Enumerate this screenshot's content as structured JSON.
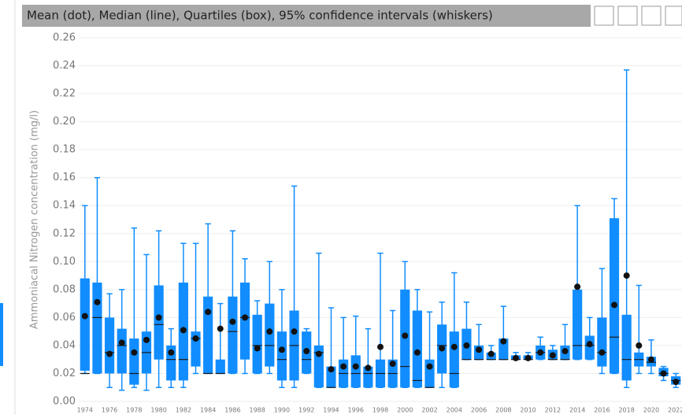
{
  "chart_data": {
    "type": "box",
    "title": "Mean (dot), Median (line), Quartiles (box), 95% confidence intervals (whiskers)",
    "y_label": "Ammoniacal Nitrogen concentration (mg/l)",
    "categories": [
      "1974",
      null,
      "1976",
      null,
      "1978",
      null,
      "1980",
      null,
      "1982",
      null,
      "1984",
      null,
      "1986",
      null,
      "1988",
      null,
      "1990",
      null,
      "1992",
      null,
      "1994",
      null,
      "1996",
      null,
      "1998",
      null,
      "2000",
      null,
      "2002",
      null,
      "2004",
      null,
      "2006",
      null,
      "2008",
      null,
      "2010",
      null,
      "2012",
      null,
      "2014",
      null,
      "2016",
      null,
      "2018",
      null,
      "2020",
      null,
      "2022"
    ],
    "low": [
      0.02,
      0.02,
      0.01,
      0.008,
      0.01,
      0.008,
      0.01,
      0.01,
      0.01,
      0.02,
      0.02,
      0.02,
      0.02,
      0.02,
      0.02,
      0.02,
      0.01,
      0.01,
      0.02,
      0.01,
      0.01,
      0.01,
      0.01,
      0.01,
      0.01,
      0.01,
      0.01,
      0.01,
      0.01,
      0.01,
      0.01,
      0.03,
      0.03,
      0.03,
      0.03,
      0.03,
      0.03,
      0.03,
      0.03,
      0.03,
      0.03,
      0.03,
      0.02,
      0.02,
      0.01,
      0.02,
      0.02,
      0.015,
      0.01
    ],
    "q1": [
      0.022,
      0.02,
      0.02,
      0.02,
      0.012,
      0.02,
      0.03,
      0.015,
      0.015,
      0.025,
      0.02,
      0.02,
      0.02,
      0.03,
      0.02,
      0.025,
      0.015,
      0.015,
      0.02,
      0.01,
      0.01,
      0.01,
      0.01,
      0.01,
      0.01,
      0.01,
      0.01,
      0.01,
      0.01,
      0.02,
      0.01,
      0.03,
      0.03,
      0.03,
      0.03,
      0.03,
      0.03,
      0.03,
      0.03,
      0.03,
      0.03,
      0.03,
      0.025,
      0.02,
      0.015,
      0.025,
      0.025,
      0.018,
      0.012
    ],
    "median": [
      0.02,
      0.06,
      0.035,
      0.04,
      0.02,
      0.035,
      0.055,
      0.03,
      0.03,
      0.045,
      0.02,
      0.02,
      0.05,
      0.06,
      0.04,
      0.04,
      0.03,
      0.04,
      0.03,
      0.035,
      0.01,
      0.02,
      0.02,
      0.02,
      0.02,
      0.02,
      0.025,
      0.015,
      0.01,
      0.04,
      0.02,
      0.03,
      0.03,
      0.03,
      0.03,
      0.03,
      0.03,
      0.035,
      0.03,
      0.03,
      0.04,
      0.04,
      0.035,
      0.046,
      0.03,
      0.03,
      0.028,
      0.02,
      0.015
    ],
    "q3": [
      0.088,
      0.085,
      0.06,
      0.052,
      0.045,
      0.05,
      0.083,
      0.04,
      0.085,
      0.05,
      0.075,
      0.03,
      0.075,
      0.085,
      0.062,
      0.07,
      0.05,
      0.065,
      0.05,
      0.04,
      0.025,
      0.03,
      0.033,
      0.025,
      0.03,
      0.03,
      0.08,
      0.065,
      0.03,
      0.055,
      0.05,
      0.052,
      0.04,
      0.035,
      0.045,
      0.033,
      0.033,
      0.04,
      0.037,
      0.04,
      0.08,
      0.047,
      0.06,
      0.131,
      0.062,
      0.035,
      0.032,
      0.024,
      0.018
    ],
    "high": [
      0.14,
      0.16,
      0.077,
      0.08,
      0.124,
      0.105,
      0.122,
      0.052,
      0.113,
      0.113,
      0.127,
      0.07,
      0.122,
      0.102,
      0.072,
      0.1,
      0.08,
      0.154,
      0.052,
      0.106,
      0.067,
      0.06,
      0.061,
      0.052,
      0.106,
      0.065,
      0.1,
      0.08,
      0.064,
      0.071,
      0.092,
      0.071,
      0.055,
      0.04,
      0.068,
      0.035,
      0.035,
      0.046,
      0.04,
      0.055,
      0.14,
      0.06,
      0.095,
      0.145,
      0.237,
      0.083,
      0.044,
      0.025,
      0.02
    ],
    "mean": [
      0.061,
      0.071,
      0.034,
      0.042,
      0.035,
      0.044,
      0.06,
      0.035,
      0.051,
      0.045,
      0.064,
      0.052,
      0.057,
      0.06,
      0.038,
      0.05,
      0.037,
      0.05,
      0.036,
      0.034,
      0.023,
      0.025,
      0.025,
      0.024,
      0.039,
      0.027,
      0.047,
      0.035,
      0.025,
      0.038,
      0.039,
      0.04,
      0.037,
      0.034,
      0.043,
      0.031,
      0.031,
      0.035,
      0.033,
      0.036,
      0.082,
      0.041,
      0.035,
      0.069,
      0.09,
      0.04,
      0.03,
      0.02,
      0.014
    ],
    "color": "#118dff",
    "mean_color": "#111111",
    "median_color": "#1a1a1a",
    "ylim": [
      0,
      0.26
    ],
    "yticks": [
      {
        "value": 0,
        "label": "0.00"
      },
      {
        "value": 0.02,
        "label": "0.02"
      },
      {
        "value": 0.04,
        "label": "0.04"
      },
      {
        "value": 0.06,
        "label": "0.06"
      },
      {
        "value": 0.08,
        "label": "0.08"
      },
      {
        "value": 0.1,
        "label": "0.10"
      },
      {
        "value": 0.12,
        "label": "0.12"
      },
      {
        "value": 0.14,
        "label": "0.14"
      },
      {
        "value": 0.16,
        "label": "0.16"
      },
      {
        "value": 0.18,
        "label": "0.18"
      },
      {
        "value": 0.2,
        "label": "0.20"
      },
      {
        "value": 0.22,
        "label": "0.22"
      },
      {
        "value": 0.24,
        "label": "0.24"
      },
      {
        "value": 0.26,
        "label": "0.26"
      }
    ],
    "grid": true
  }
}
